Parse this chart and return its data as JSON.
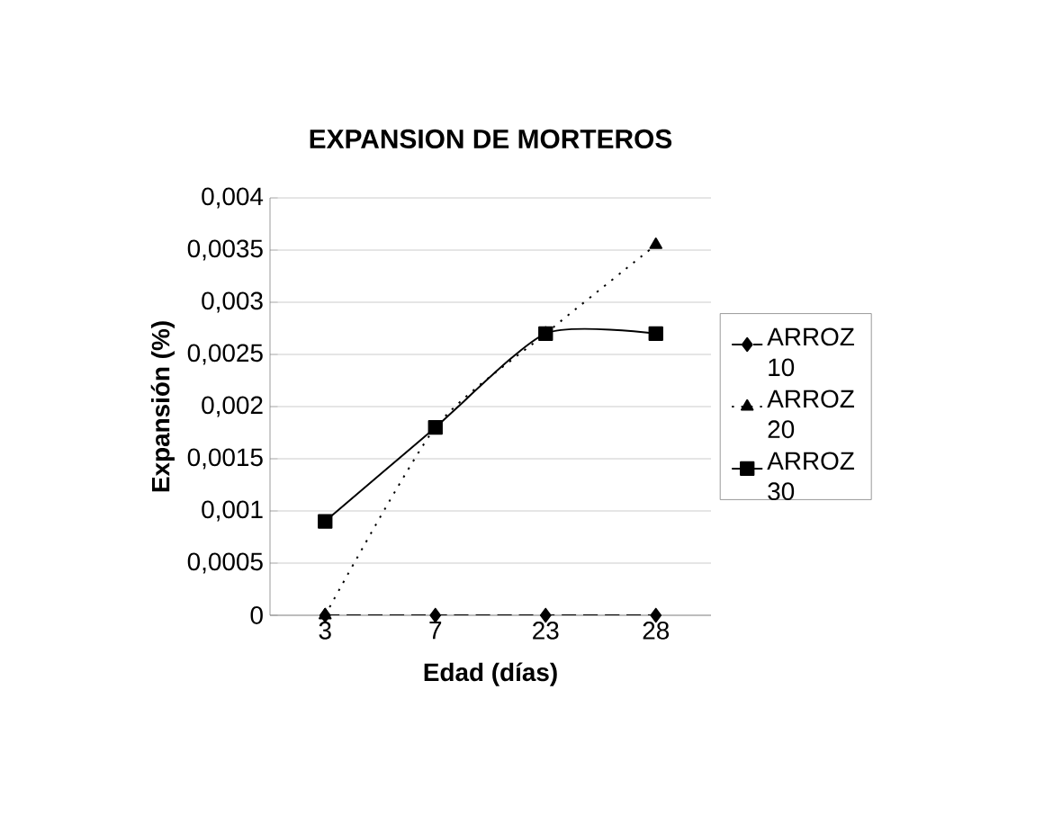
{
  "chart_data": {
    "type": "line",
    "title": "EXPANSION DE MORTEROS",
    "xlabel": "Edad (días)",
    "ylabel": "Expansión (%)",
    "categories": [
      "3",
      "7",
      "23",
      "28"
    ],
    "series": [
      {
        "name": "ARROZ 10",
        "color": "#000000",
        "marker": "diamond",
        "line_style": "dashed",
        "values": [
          0,
          0,
          0,
          0
        ]
      },
      {
        "name": "ARROZ 20",
        "color": "#000000",
        "marker": "triangle",
        "line_style": "dotted",
        "values": [
          0,
          0.0018,
          0.0027,
          0.00355
        ]
      },
      {
        "name": "ARROZ 30",
        "color": "#000000",
        "marker": "square",
        "line_style": "solid",
        "values": [
          0.0009,
          0.0018,
          0.0027,
          0.0027
        ]
      }
    ],
    "ylim": [
      0,
      0.004
    ],
    "yticks": [
      0,
      {
        "value": 0.0005,
        "label": "0,0005"
      },
      {
        "value": 0.001,
        "label": "0,001"
      },
      {
        "value": 0.0015,
        "label": "0,0015"
      },
      {
        "value": 0.002,
        "label": "0,002"
      },
      {
        "value": 0.0025,
        "label": "0,0025"
      },
      {
        "value": 0.003,
        "label": "0,003"
      },
      {
        "value": 0.0035,
        "label": "0,0035"
      },
      {
        "value": 0.004,
        "label": "0,004"
      }
    ],
    "grid": "y",
    "legend": "right"
  }
}
